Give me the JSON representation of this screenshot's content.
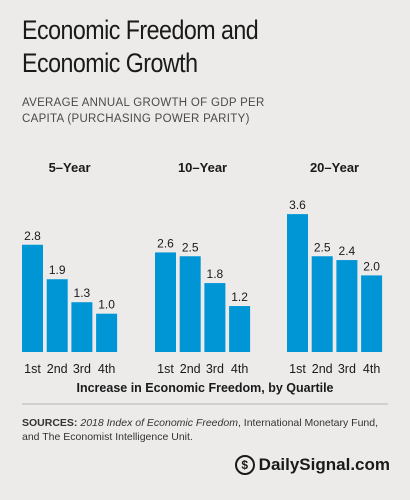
{
  "header": {
    "title_line1": "Economic Freedom and",
    "title_line2": "Economic Growth",
    "subtitle_line1": "AVERAGE ANNUAL GROWTH OF GDP PER",
    "subtitle_line2": "CAPITA (PURCHASING POWER PARITY)"
  },
  "chart_data": {
    "type": "bar",
    "xlabel": "Increase in Economic Freedom, by Quartile",
    "ylim": [
      0,
      4.2
    ],
    "bar_color": "#0096d6",
    "panels": [
      {
        "title": "5–Year",
        "categories": [
          "1st",
          "2nd",
          "3rd",
          "4th"
        ],
        "values": [
          2.8,
          1.9,
          1.3,
          1.0
        ]
      },
      {
        "title": "10–Year",
        "categories": [
          "1st",
          "2nd",
          "3rd",
          "4th"
        ],
        "values": [
          2.6,
          2.5,
          1.8,
          1.2
        ]
      },
      {
        "title": "20–Year",
        "categories": [
          "1st",
          "2nd",
          "3rd",
          "4th"
        ],
        "values": [
          3.6,
          2.5,
          2.4,
          2.0
        ]
      }
    ]
  },
  "footer": {
    "sources_label": "SOURCES:",
    "sources_italic": "2018 Index of Economic Freedom",
    "sources_rest": ", International Monetary Fund, and The Economist Intelligence Unit.",
    "brand": "DailySignal.com",
    "brand_mark": "$"
  }
}
